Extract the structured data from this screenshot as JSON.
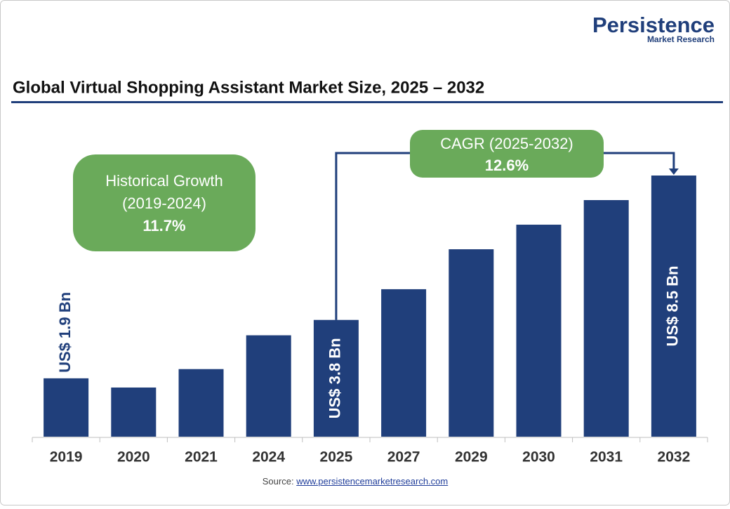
{
  "logo": {
    "name": "Persistence",
    "tagline": "Market Research"
  },
  "chart_data": {
    "type": "bar",
    "title": "Global Virtual Shopping Assistant Market Size, 2025 – 2032",
    "categories": [
      "2019",
      "2020",
      "2021",
      "2024",
      "2025",
      "2027",
      "2029",
      "2030",
      "2031",
      "2032"
    ],
    "values": [
      1.9,
      1.6,
      2.2,
      3.3,
      3.8,
      4.8,
      6.1,
      6.9,
      7.7,
      8.5
    ],
    "value_labels": [
      "US$ 1.9 Bn",
      null,
      null,
      null,
      "US$ 3.8 Bn",
      null,
      null,
      null,
      null,
      "US$ 8.5 Bn"
    ],
    "color": "#203f7b",
    "annotations": {
      "historical": [
        "Historical Growth",
        "(2019-2024)",
        "11.7%"
      ],
      "cagr": [
        "CAGR (2025-2032)",
        "12.6%"
      ],
      "color": "#6aaa5a"
    }
  },
  "source": {
    "label": "Source:",
    "url": "www.persistencemarketresearch.com"
  }
}
